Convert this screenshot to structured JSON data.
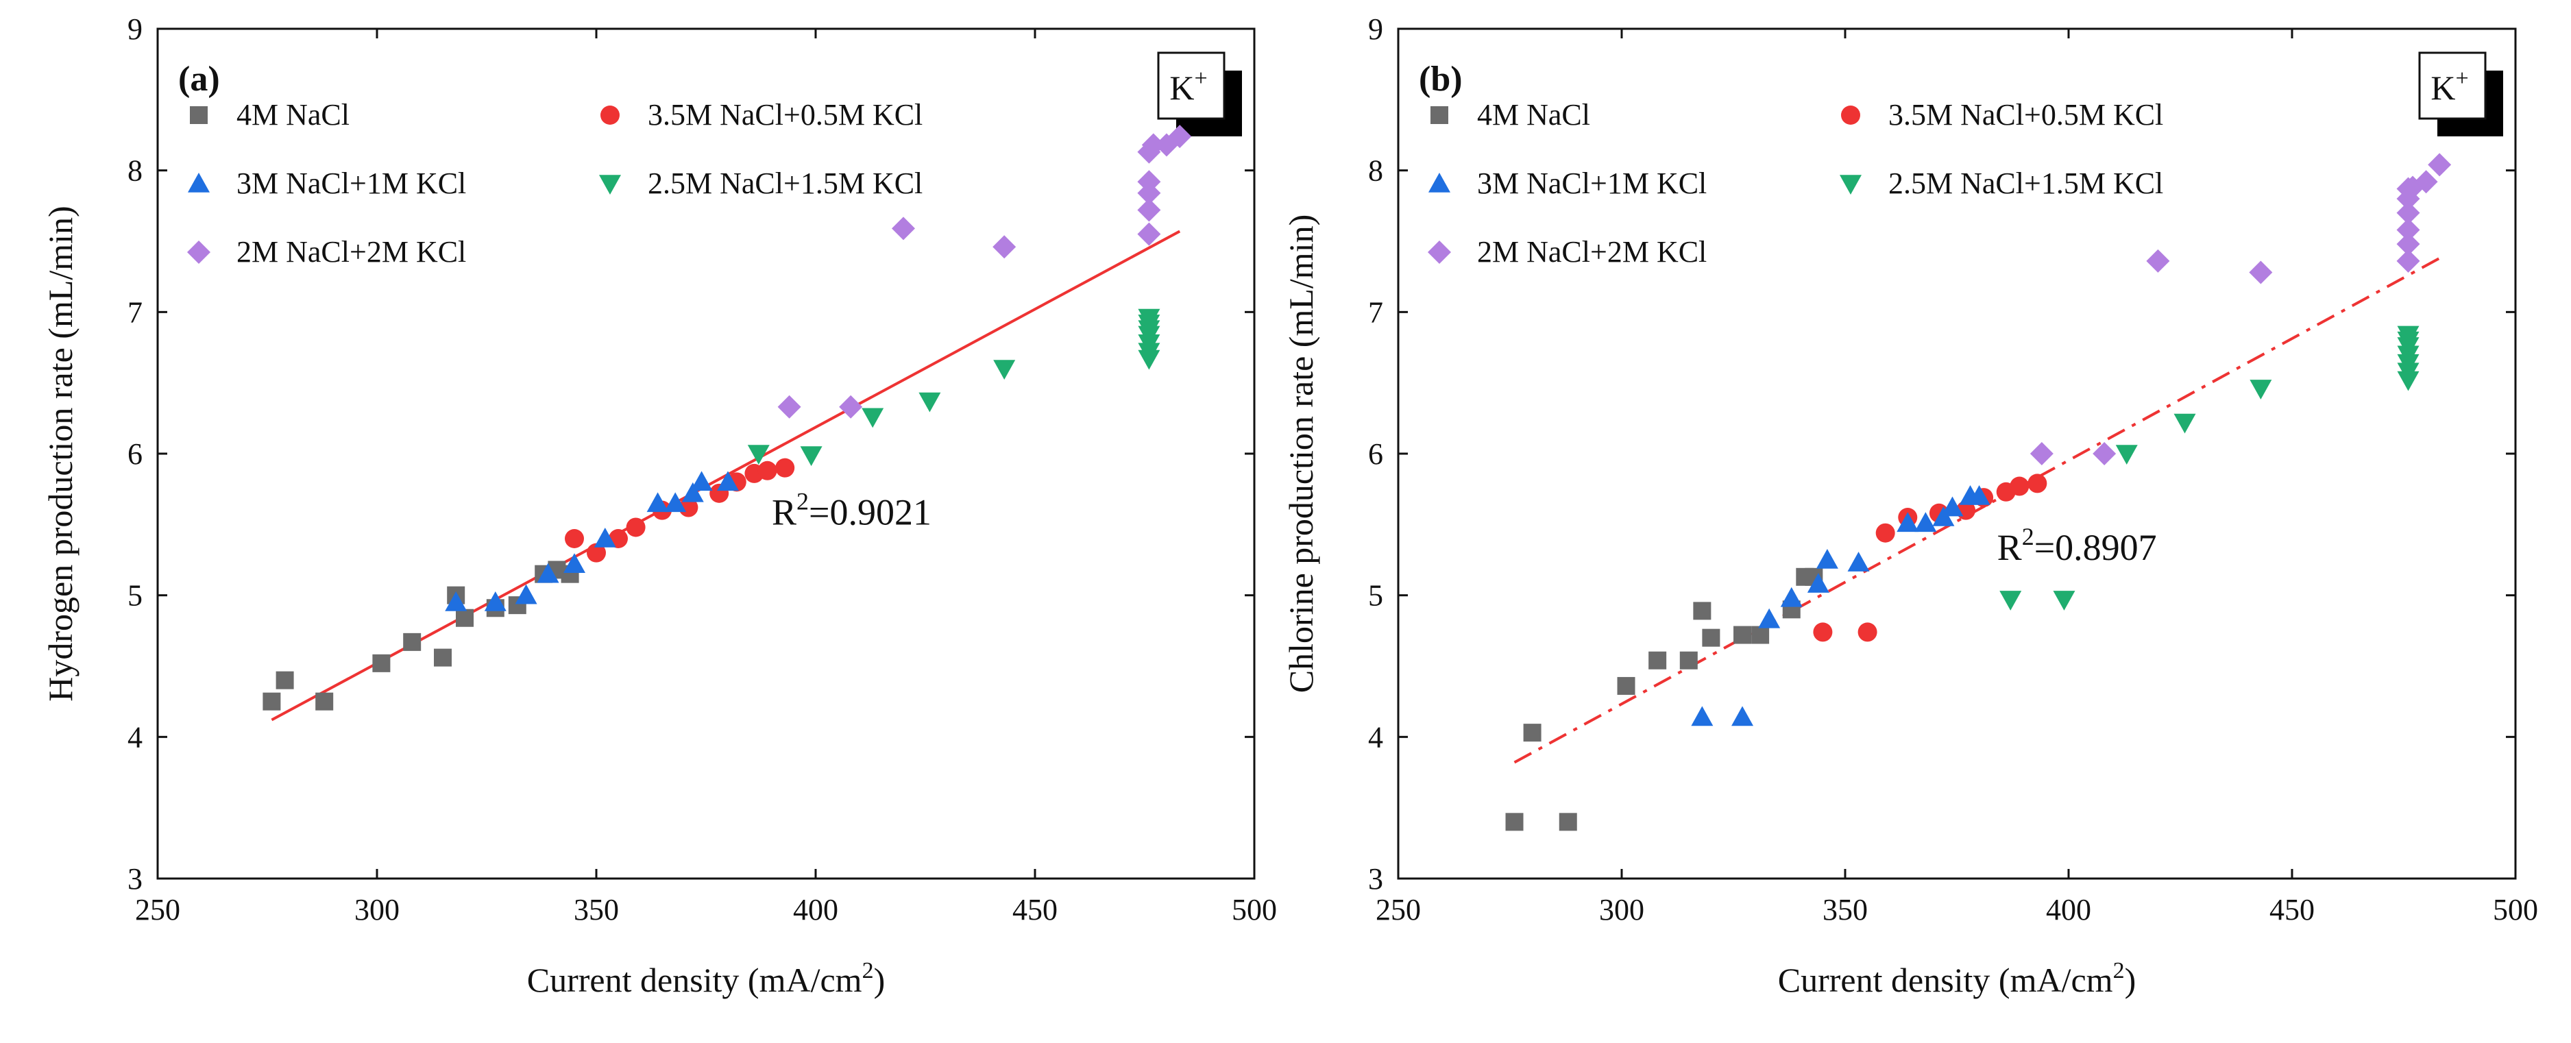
{
  "chart_data": [
    {
      "type": "scatter",
      "panel": "(a)",
      "ion_badge": {
        "base": "K",
        "sup": "+"
      },
      "xlabel": {
        "text": "Current density (mA/cm",
        "sup": "2",
        "suffix": ")"
      },
      "ylabel": "Hydrogen production rate (mL/min)",
      "xlim": [
        250,
        500
      ],
      "ylim": [
        3,
        9
      ],
      "xticks": [
        250,
        300,
        350,
        400,
        450,
        500
      ],
      "yticks": [
        3,
        4,
        5,
        6,
        7,
        8,
        9
      ],
      "legend_position": "top-left",
      "r2": {
        "base": "R",
        "sup": "2",
        "value": "=0.9021"
      },
      "fit": {
        "style": "solid",
        "color": "#ee3333",
        "x": [
          276,
          483
        ],
        "y": [
          4.12,
          7.57
        ]
      },
      "series": [
        {
          "name": "4M NaCl",
          "marker": "square",
          "color": "#6b6b6b",
          "x": [
            276,
            279,
            288,
            301,
            308,
            315,
            318,
            320,
            327,
            332,
            338,
            341,
            344
          ],
          "y": [
            4.25,
            4.4,
            4.25,
            4.52,
            4.67,
            4.56,
            5.0,
            4.84,
            4.91,
            4.93,
            5.15,
            5.18,
            5.15
          ]
        },
        {
          "name": "3.5M NaCl+0.5M KCl",
          "marker": "circle",
          "color": "#ee3333",
          "x": [
            345,
            350,
            355,
            359,
            365,
            371,
            378,
            382,
            386,
            389,
            393
          ],
          "y": [
            5.4,
            5.3,
            5.4,
            5.48,
            5.6,
            5.62,
            5.72,
            5.8,
            5.86,
            5.88,
            5.9
          ]
        },
        {
          "name": "3M NaCl+1M KCl",
          "marker": "triangle-up",
          "color": "#1f6fe0",
          "x": [
            318,
            327,
            334,
            339,
            345,
            352,
            364,
            368,
            372,
            374,
            380
          ],
          "y": [
            4.95,
            4.95,
            5.0,
            5.15,
            5.22,
            5.4,
            5.65,
            5.65,
            5.72,
            5.8,
            5.8
          ]
        },
        {
          "name": "2.5M NaCl+1.5M KCl",
          "marker": "triangle-down",
          "color": "#1fad6f",
          "x": [
            387,
            399,
            413,
            426,
            443,
            476,
            476,
            476,
            476,
            476,
            476,
            476
          ],
          "y": [
            6.0,
            5.99,
            6.26,
            6.37,
            6.6,
            6.67,
            6.72,
            6.78,
            6.84,
            6.88,
            6.92,
            6.96
          ]
        },
        {
          "name": "2M NaCl+2M KCl",
          "marker": "diamond",
          "color": "#b27ee0",
          "x": [
            394,
            408,
            420,
            443,
            476,
            476,
            476,
            476,
            476,
            477,
            480,
            483
          ],
          "y": [
            6.33,
            6.33,
            7.59,
            7.46,
            7.55,
            7.72,
            7.84,
            7.92,
            8.13,
            8.18,
            8.18,
            8.24
          ]
        }
      ]
    },
    {
      "type": "scatter",
      "panel": "(b)",
      "ion_badge": {
        "base": "K",
        "sup": "+"
      },
      "xlabel": {
        "text": "Current density (mA/cm",
        "sup": "2",
        "suffix": ")"
      },
      "ylabel": "Chlorine production rate (mL/min)",
      "xlim": [
        250,
        500
      ],
      "ylim": [
        3,
        9
      ],
      "xticks": [
        250,
        300,
        350,
        400,
        450,
        500
      ],
      "yticks": [
        3,
        4,
        5,
        6,
        7,
        8,
        9
      ],
      "legend_position": "top-left",
      "r2": {
        "base": "R",
        "sup": "2",
        "value": "=0.8907"
      },
      "fit": {
        "style": "dashdot",
        "color": "#ee3333",
        "x": [
          276,
          483
        ],
        "y": [
          3.82,
          7.38
        ]
      },
      "series": [
        {
          "name": "4M NaCl",
          "marker": "square",
          "color": "#6b6b6b",
          "x": [
            276,
            280,
            288,
            301,
            308,
            315,
            318,
            320,
            327,
            331,
            338,
            341,
            343
          ],
          "y": [
            3.4,
            4.03,
            3.4,
            4.36,
            4.54,
            4.54,
            4.89,
            4.7,
            4.72,
            4.72,
            4.9,
            5.13,
            5.13
          ]
        },
        {
          "name": "3.5M NaCl+0.5M KCl",
          "marker": "circle",
          "color": "#ee3333",
          "x": [
            345,
            355,
            359,
            364,
            371,
            377,
            381,
            386,
            389,
            393
          ],
          "y": [
            4.74,
            4.74,
            5.44,
            5.55,
            5.58,
            5.6,
            5.69,
            5.73,
            5.77,
            5.79
          ]
        },
        {
          "name": "3M NaCl+1M KCl",
          "marker": "triangle-up",
          "color": "#1f6fe0",
          "x": [
            318,
            327,
            333,
            338,
            344,
            346,
            353,
            364,
            368,
            372,
            374,
            378,
            380
          ],
          "y": [
            4.14,
            4.14,
            4.83,
            4.98,
            5.08,
            5.25,
            5.23,
            5.51,
            5.51,
            5.55,
            5.62,
            5.7,
            5.7
          ]
        },
        {
          "name": "2.5M NaCl+1.5M KCl",
          "marker": "triangle-down",
          "color": "#1fad6f",
          "x": [
            387,
            399,
            413,
            426,
            443,
            476,
            476,
            476,
            476,
            476,
            476,
            476
          ],
          "y": [
            4.97,
            4.97,
            6.0,
            6.22,
            6.46,
            6.52,
            6.58,
            6.64,
            6.7,
            6.76,
            6.8,
            6.84
          ]
        },
        {
          "name": "2M NaCl+2M KCl",
          "marker": "diamond",
          "color": "#b27ee0",
          "x": [
            394,
            408,
            420,
            443,
            476,
            476,
            476,
            476,
            476,
            476,
            477,
            480,
            483
          ],
          "y": [
            6.0,
            6.0,
            7.36,
            7.28,
            7.36,
            7.48,
            7.58,
            7.7,
            7.8,
            7.87,
            7.88,
            7.92,
            8.04
          ]
        }
      ]
    }
  ]
}
